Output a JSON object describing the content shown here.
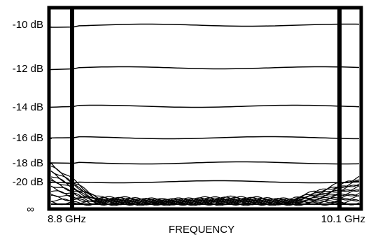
{
  "chart_data": {
    "type": "line",
    "title": "",
    "xlabel": "FREQUENCY",
    "ylabel": "",
    "x_ticks": [
      "8.8 GHz",
      "10.1 GHz"
    ],
    "y_ticks": [
      "-10 dB",
      "-12 dB",
      "-14 dB",
      "-16 dB",
      "-18 dB",
      "-20 dB",
      "∞"
    ],
    "reference_levels_db": [
      -10,
      -12,
      -14,
      -16,
      -18,
      -20
    ],
    "noise_floor_label": "∞",
    "marker_lines": [
      "8.8 GHz",
      "10.1 GHz"
    ],
    "grid": false,
    "legend": "none",
    "line_color": "#000000"
  }
}
